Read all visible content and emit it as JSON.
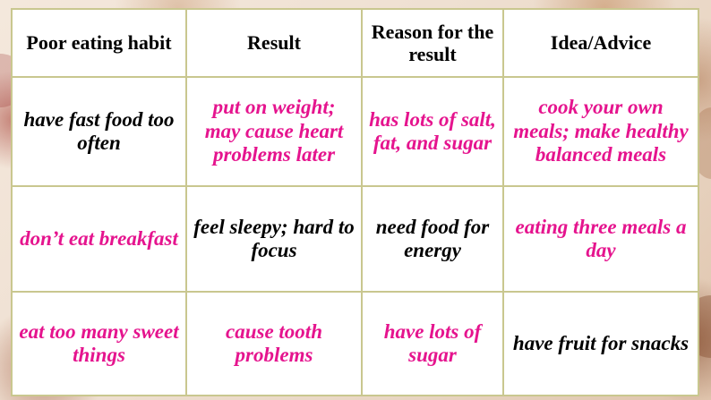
{
  "colors": {
    "answer_text": "#e5148e",
    "given_text": "#000000",
    "grid_line": "#c9c78f"
  },
  "table": {
    "headers": [
      "Poor eating habit",
      "Result",
      "Reason for the result",
      "Idea/Advice"
    ],
    "rows": [
      [
        {
          "text": "have fast food too often",
          "color": "black"
        },
        {
          "text": "put on weight; may cause heart problems later",
          "color": "pink"
        },
        {
          "text": "has lots of salt, fat, and sugar",
          "color": "pink"
        },
        {
          "text": "cook your own meals; make healthy balanced meals",
          "color": "pink"
        }
      ],
      [
        {
          "text": "don’t eat breakfast",
          "color": "pink"
        },
        {
          "text": "feel sleepy; hard to focus",
          "color": "black"
        },
        {
          "text": "need food for energy",
          "color": "black"
        },
        {
          "text": "eating three meals a day",
          "color": "pink"
        }
      ],
      [
        {
          "text": "eat too many sweet things",
          "color": "pink"
        },
        {
          "text": "cause tooth problems",
          "color": "pink"
        },
        {
          "text": "have lots of sugar",
          "color": "pink"
        },
        {
          "text": "have fruit for snacks",
          "color": "black"
        }
      ]
    ]
  }
}
